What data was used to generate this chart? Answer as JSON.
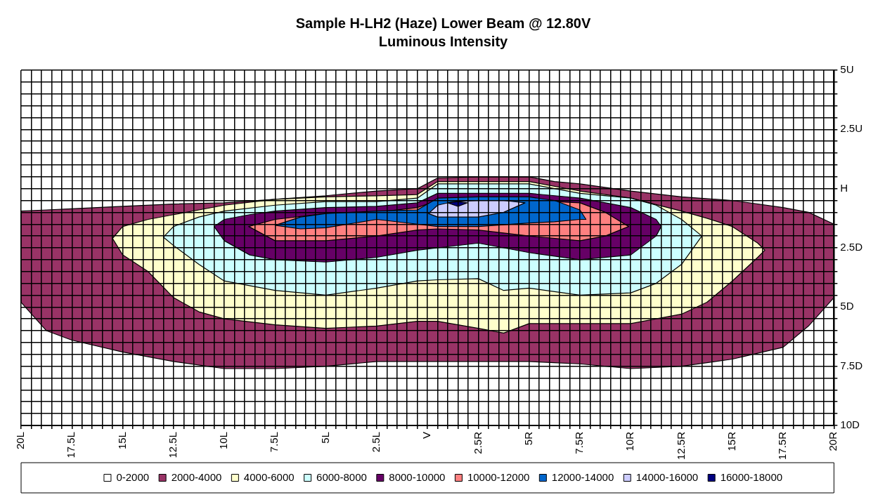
{
  "chart_data": {
    "type": "area",
    "title": "Sample H-LH2 (Haze) Lower Beam @ 12.80V",
    "subtitle": "Luminous Intensity",
    "xlim": [
      -20,
      20
    ],
    "xticks": [
      {
        "value": -20,
        "label": "20L"
      },
      {
        "value": -19.5,
        "label": null
      },
      {
        "value": -19,
        "label": null
      },
      {
        "value": -18.5,
        "label": null
      },
      {
        "value": -18,
        "label": null
      },
      {
        "value": -17.5,
        "label": "17.5L"
      },
      {
        "value": -17,
        "label": null
      },
      {
        "value": -16.5,
        "label": null
      },
      {
        "value": -16,
        "label": null
      },
      {
        "value": -15.5,
        "label": null
      },
      {
        "value": -15,
        "label": "15L"
      },
      {
        "value": -14.5,
        "label": null
      },
      {
        "value": -14,
        "label": null
      },
      {
        "value": -13.5,
        "label": null
      },
      {
        "value": -13,
        "label": null
      },
      {
        "value": -12.5,
        "label": "12.5L"
      },
      {
        "value": -12,
        "label": null
      },
      {
        "value": -11.5,
        "label": null
      },
      {
        "value": -11,
        "label": null
      },
      {
        "value": -10.5,
        "label": null
      },
      {
        "value": -10,
        "label": "10L"
      },
      {
        "value": -9.5,
        "label": null
      },
      {
        "value": -9,
        "label": null
      },
      {
        "value": -8.5,
        "label": null
      },
      {
        "value": -8,
        "label": null
      },
      {
        "value": -7.5,
        "label": "7.5L"
      },
      {
        "value": -7,
        "label": null
      },
      {
        "value": -6.5,
        "label": null
      },
      {
        "value": -6,
        "label": null
      },
      {
        "value": -5.5,
        "label": null
      },
      {
        "value": -5,
        "label": "5L"
      },
      {
        "value": -4.5,
        "label": null
      },
      {
        "value": -4,
        "label": null
      },
      {
        "value": -3.5,
        "label": null
      },
      {
        "value": -3,
        "label": null
      },
      {
        "value": -2.5,
        "label": "2.5L"
      },
      {
        "value": -2,
        "label": null
      },
      {
        "value": -1.5,
        "label": null
      },
      {
        "value": -1,
        "label": null
      },
      {
        "value": -0.5,
        "label": null
      },
      {
        "value": 0,
        "label": "V"
      },
      {
        "value": 0.5,
        "label": null
      },
      {
        "value": 1,
        "label": null
      },
      {
        "value": 1.5,
        "label": null
      },
      {
        "value": 2,
        "label": null
      },
      {
        "value": 2.5,
        "label": "2.5R"
      },
      {
        "value": 3,
        "label": null
      },
      {
        "value": 3.5,
        "label": null
      },
      {
        "value": 4,
        "label": null
      },
      {
        "value": 4.5,
        "label": null
      },
      {
        "value": 5,
        "label": "5R"
      },
      {
        "value": 5.5,
        "label": null
      },
      {
        "value": 6,
        "label": null
      },
      {
        "value": 6.5,
        "label": null
      },
      {
        "value": 7,
        "label": null
      },
      {
        "value": 7.5,
        "label": "7.5R"
      },
      {
        "value": 8,
        "label": null
      },
      {
        "value": 8.5,
        "label": null
      },
      {
        "value": 9,
        "label": null
      },
      {
        "value": 9.5,
        "label": null
      },
      {
        "value": 10,
        "label": "10R"
      },
      {
        "value": 10.5,
        "label": null
      },
      {
        "value": 11,
        "label": null
      },
      {
        "value": 11.5,
        "label": null
      },
      {
        "value": 12,
        "label": null
      },
      {
        "value": 12.5,
        "label": "12.5R"
      },
      {
        "value": 13,
        "label": null
      },
      {
        "value": 13.5,
        "label": null
      },
      {
        "value": 14,
        "label": null
      },
      {
        "value": 14.5,
        "label": null
      },
      {
        "value": 15,
        "label": "15R"
      },
      {
        "value": 15.5,
        "label": null
      },
      {
        "value": 16,
        "label": null
      },
      {
        "value": 16.5,
        "label": null
      },
      {
        "value": 17,
        "label": null
      },
      {
        "value": 17.5,
        "label": "17.5R"
      },
      {
        "value": 18,
        "label": null
      },
      {
        "value": 18.5,
        "label": null
      },
      {
        "value": 19,
        "label": null
      },
      {
        "value": 19.5,
        "label": null
      },
      {
        "value": 20,
        "label": "20R"
      }
    ],
    "ylim": [
      -10,
      5
    ],
    "yticks": [
      {
        "value": 5,
        "label": "5U"
      },
      {
        "value": 4.5,
        "label": null
      },
      {
        "value": 4,
        "label": null
      },
      {
        "value": 3.5,
        "label": null
      },
      {
        "value": 3,
        "label": null
      },
      {
        "value": 2.5,
        "label": "2.5U"
      },
      {
        "value": 2,
        "label": null
      },
      {
        "value": 1.5,
        "label": null
      },
      {
        "value": 1,
        "label": null
      },
      {
        "value": 0.5,
        "label": null
      },
      {
        "value": 0,
        "label": "H"
      },
      {
        "value": -0.5,
        "label": null
      },
      {
        "value": -1,
        "label": null
      },
      {
        "value": -1.5,
        "label": null
      },
      {
        "value": -2,
        "label": null
      },
      {
        "value": -2.5,
        "label": "2.5D"
      },
      {
        "value": -3,
        "label": null
      },
      {
        "value": -3.5,
        "label": null
      },
      {
        "value": -4,
        "label": null
      },
      {
        "value": -4.5,
        "label": null
      },
      {
        "value": -5,
        "label": "5D"
      },
      {
        "value": -5.5,
        "label": null
      },
      {
        "value": -6,
        "label": null
      },
      {
        "value": -6.5,
        "label": null
      },
      {
        "value": -7,
        "label": null
      },
      {
        "value": -7.5,
        "label": "7.5D"
      },
      {
        "value": -8,
        "label": null
      },
      {
        "value": -8.5,
        "label": null
      },
      {
        "value": -9,
        "label": null
      },
      {
        "value": -9.5,
        "label": null
      },
      {
        "value": -10,
        "label": "10D"
      }
    ],
    "grid": true,
    "legend": "bottom",
    "series": [
      {
        "name": "0-2000",
        "color": "#ffffff"
      },
      {
        "name": "2000-4000",
        "color": "#993366",
        "x": [
          -20,
          -18.75,
          -17.5,
          -15,
          -12.5,
          -10,
          -7.5,
          -5,
          -2.5,
          -0.5,
          0.5,
          2.5,
          5,
          6.25,
          7.5,
          10,
          12.5,
          15,
          17.5,
          18.75,
          20
        ],
        "values": [
          null,
          null,
          null,
          null,
          null,
          null,
          null,
          null,
          null,
          null,
          null,
          null,
          null,
          null,
          null,
          null,
          null,
          null,
          null,
          null,
          null
        ],
        "upper": [
          -0.95,
          -0.9,
          -0.85,
          -0.75,
          -0.65,
          -0.6,
          -0.45,
          -0.3,
          -0.1,
          0,
          0.45,
          0.5,
          0.5,
          0.3,
          0.2,
          -0.1,
          -0.35,
          -0.5,
          -0.8,
          -1,
          -1.5
        ],
        "lower": [
          -4.8,
          -6,
          -6.4,
          -6.9,
          -7.3,
          -7.6,
          -7.6,
          -7.5,
          -7.3,
          -7.3,
          -7.3,
          -7.3,
          -7.3,
          -7.35,
          -7.4,
          -7.6,
          -7.5,
          -7.2,
          -6.7,
          -5.8,
          -4.6
        ]
      },
      {
        "name": "4000-6000",
        "color": "#ffffcc",
        "x": [
          -15.5,
          -15,
          -13.75,
          -12.5,
          -11.25,
          -10,
          -7.5,
          -5,
          -2.5,
          -0.5,
          0.5,
          2.5,
          3.75,
          5,
          7.5,
          10,
          12.5,
          13.75,
          15,
          16.25,
          16.6
        ],
        "values": [
          null,
          null,
          null,
          null,
          null,
          null,
          null,
          null,
          null,
          null,
          null,
          null,
          null,
          null,
          null,
          null,
          null,
          null,
          null,
          null,
          null
        ],
        "upper": [
          -2.1,
          -1.6,
          -1.3,
          -1.1,
          -0.9,
          -0.7,
          -0.45,
          -0.35,
          -0.3,
          -0.25,
          0.3,
          0.3,
          0.3,
          0.3,
          -0.1,
          -0.4,
          -0.95,
          -1.25,
          -1.6,
          -2.3,
          -2.6
        ],
        "lower": [
          -2.1,
          -2.8,
          -3.5,
          -4.6,
          -5.2,
          -5.5,
          -5.75,
          -5.9,
          -5.8,
          -5.6,
          -5.6,
          -5.9,
          -6.1,
          -5.7,
          -5.7,
          -5.7,
          -5.3,
          -4.8,
          -3.9,
          -2.9,
          -2.6
        ]
      },
      {
        "name": "6000-8000",
        "color": "#ccffff",
        "x": [
          -13,
          -12.5,
          -11.25,
          -10,
          -7.5,
          -5,
          -2.5,
          -0.5,
          0.5,
          2.5,
          3.75,
          5,
          7.5,
          10,
          11.25,
          12.5,
          13.5
        ],
        "values": [
          null,
          null,
          null,
          null,
          null,
          null,
          null,
          null,
          null,
          null,
          null,
          null,
          null,
          null,
          null,
          null,
          null
        ],
        "upper": [
          -2.05,
          -1.6,
          -1.2,
          -0.95,
          -0.7,
          -0.55,
          -0.55,
          -0.4,
          0.2,
          0.2,
          0.2,
          0.2,
          -0.2,
          -0.4,
          -0.7,
          -1.3,
          -2
        ],
        "lower": [
          -2.05,
          -2.4,
          -3.2,
          -3.9,
          -4.3,
          -4.5,
          -4.2,
          -3.9,
          -3.85,
          -3.8,
          -4.3,
          -4.2,
          -4.5,
          -4.4,
          -4,
          -3.2,
          -2
        ]
      },
      {
        "name": "8000-10000",
        "color": "#660066",
        "x": [
          -10.5,
          -10,
          -8.75,
          -7.5,
          -5,
          -2.5,
          -0.5,
          0.5,
          2.5,
          5,
          7.5,
          10,
          11.25,
          11.5
        ],
        "values": [
          null,
          null,
          null,
          null,
          null,
          null,
          null,
          null,
          null,
          null,
          null,
          null,
          null,
          null
        ],
        "upper": [
          -1.6,
          -1.3,
          -1.1,
          -0.95,
          -0.8,
          -0.75,
          -0.6,
          -0.2,
          -0.2,
          -0.2,
          -0.4,
          -0.8,
          -1.3,
          -1.6
        ],
        "lower": [
          -1.6,
          -2.2,
          -2.8,
          -3,
          -3.1,
          -2.9,
          -2.6,
          -2.5,
          -2.3,
          -2.7,
          -3,
          -2.8,
          -2,
          -1.6
        ]
      },
      {
        "name": "10000-12000",
        "color": "#ff8080",
        "x": [
          -8.8,
          -7.5,
          -5,
          -2.5,
          -0.5,
          0.5,
          2.5,
          5,
          7.5,
          8.75,
          9.9
        ],
        "values": [
          null,
          null,
          null,
          null,
          null,
          null,
          null,
          null,
          null,
          null,
          null
        ],
        "upper": [
          -1.6,
          -1.3,
          -1.05,
          -1,
          -0.8,
          -0.5,
          -0.5,
          -0.5,
          -0.6,
          -1,
          -1.6
        ],
        "lower": [
          -1.6,
          -2.2,
          -2.2,
          -2,
          -1.75,
          -1.7,
          -1.75,
          -2,
          -2.2,
          -2,
          -1.6
        ]
      },
      {
        "name": "12000-14000",
        "color": "#0066cc",
        "x": [
          -7.5,
          -6.25,
          -5,
          -2.5,
          -0.5,
          0.5,
          2.5,
          5,
          6.25,
          7.5,
          7.8
        ],
        "values": [
          null,
          null,
          null,
          null,
          null,
          null,
          null,
          null,
          null,
          null,
          null
        ],
        "upper": [
          -1.55,
          -1.2,
          -1.05,
          -0.95,
          -0.9,
          -0.4,
          -0.35,
          -0.35,
          -0.5,
          -0.9,
          -1.3
        ],
        "lower": [
          -1.55,
          -1.7,
          -1.65,
          -1.3,
          -1.5,
          -1.6,
          -1.6,
          -1.45,
          -1.4,
          -1.3,
          -1.3
        ]
      },
      {
        "name": "14000-16000",
        "color": "#ccccff",
        "x": [
          0.05,
          0.5,
          1.25,
          2.5,
          3.75,
          4.8
        ],
        "values": [
          null,
          null,
          null,
          null,
          null,
          null
        ],
        "upper": [
          -1.05,
          -0.7,
          -0.55,
          -0.5,
          -0.5,
          -0.6
        ],
        "lower": [
          -1.05,
          -1.2,
          -1.2,
          -1.2,
          -1,
          -0.6
        ]
      },
      {
        "name": "16000-18000",
        "color": "#000080",
        "x": [
          1,
          1.5,
          1.95
        ],
        "values": [
          null,
          null,
          null
        ],
        "upper": [
          -0.6,
          -0.55,
          -0.6
        ],
        "lower": [
          -0.6,
          -0.75,
          -0.6
        ]
      }
    ]
  }
}
